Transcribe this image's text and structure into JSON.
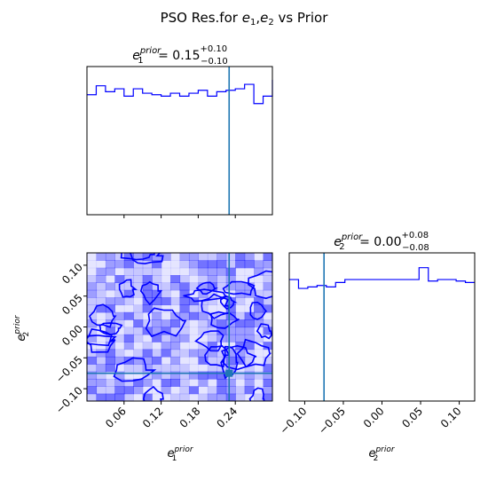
{
  "figure": {
    "title_main": "PSO Res.for ",
    "title_e": "e",
    "title_sub1": "1",
    "title_comma": ",",
    "title_sub2": "2",
    "title_tail": " vs Prior"
  },
  "colors": {
    "hist_line": "#0000ff",
    "truth_line": "#1f77b4",
    "contour_fill": "#0000ff",
    "marker": "#1f77b4"
  },
  "chart_data": [
    {
      "panel": "e1-marginal",
      "type": "line",
      "title": {
        "sym": "e",
        "sub": "1",
        "sup": "prior",
        "mid": " = 0.15",
        "plus": "+0.10",
        "minus": "−0.10"
      },
      "xlim": [
        0.0,
        0.3
      ],
      "ylim": [
        0,
        100
      ],
      "xticks": [
        0.06,
        0.12,
        0.18,
        0.24
      ],
      "yticks": [],
      "bins": [
        0.0,
        0.015,
        0.03,
        0.045,
        0.06,
        0.075,
        0.09,
        0.105,
        0.12,
        0.135,
        0.15,
        0.165,
        0.18,
        0.195,
        0.21,
        0.225,
        0.24,
        0.255,
        0.27,
        0.285,
        0.3
      ],
      "values": [
        81,
        87,
        83,
        85,
        80,
        85,
        82,
        81,
        80,
        82,
        80,
        82,
        84,
        80,
        83,
        84,
        85,
        88,
        75,
        80,
        91
      ],
      "vline": 0.23
    },
    {
      "panel": "e1-e2-joint",
      "type": "heatmap",
      "xlim": [
        0.0,
        0.3
      ],
      "ylim": [
        -0.12,
        0.12
      ],
      "xticks": [
        0.06,
        0.12,
        0.18,
        0.24
      ],
      "yticks": [
        -0.1,
        -0.05,
        0.0,
        0.05,
        0.1
      ],
      "xlabel": {
        "sym": "e",
        "sub": "1",
        "sup": "prior"
      },
      "ylabel": {
        "sym": "e",
        "sub": "2",
        "sup": "prior"
      },
      "nx": 20,
      "ny": 20,
      "vline": 0.23,
      "hline": -0.075,
      "marker": [
        0.23,
        -0.075
      ],
      "seed": 73
    },
    {
      "panel": "e2-marginal",
      "type": "line",
      "title": {
        "sym": "e",
        "sub": "2",
        "sup": "prior",
        "mid": " = 0.00",
        "plus": "+0.08",
        "minus": "−0.08"
      },
      "xlim": [
        -0.12,
        0.12
      ],
      "ylim": [
        0,
        100
      ],
      "xticks": [
        -0.1,
        -0.05,
        0.0,
        0.05,
        0.1
      ],
      "xtick_labels": [
        "−0.10",
        "−0.05",
        "0.00",
        "0.05",
        "0.10"
      ],
      "yticks": [],
      "xlabel": {
        "sym": "e",
        "sub": "2",
        "sup": "prior"
      },
      "bins": [
        -0.12,
        -0.108,
        -0.096,
        -0.084,
        -0.072,
        -0.06,
        -0.048,
        -0.036,
        -0.024,
        -0.012,
        0.0,
        0.012,
        0.024,
        0.036,
        0.048,
        0.06,
        0.072,
        0.084,
        0.096,
        0.108,
        0.12
      ],
      "values": [
        82,
        76,
        77,
        78,
        77,
        80,
        82,
        82,
        82,
        82,
        82,
        82,
        82,
        82,
        90,
        81,
        82,
        82,
        81,
        80,
        80
      ],
      "vline": -0.075
    }
  ]
}
